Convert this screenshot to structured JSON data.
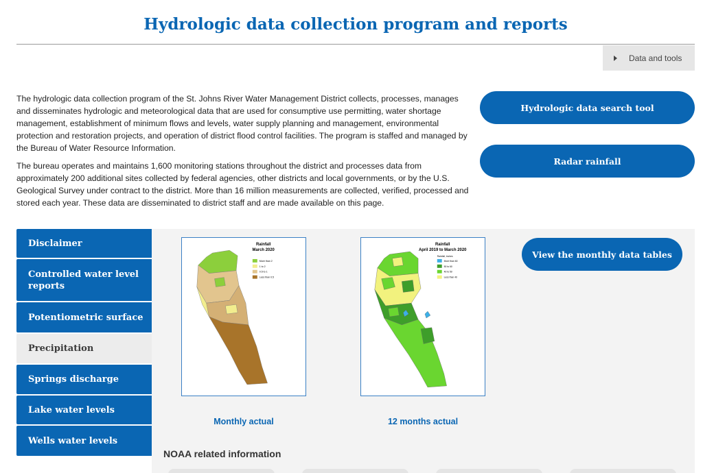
{
  "header": {
    "title": "Hydrologic data collection program and reports"
  },
  "data_tools": {
    "label": "Data and tools"
  },
  "intro": {
    "p1": "The hydrologic data collection program of the St. Johns River Water Management District collects, processes, manages and disseminates hydrologic and meteorological data that are used for consumptive use permitting, water shortage management, establishment of minimum flows and levels, water supply planning and management, environmental protection and restoration projects, and operation of district flood control facilities. The program is staffed and managed by the Bureau of Water Resource Information.",
    "p2": "The bureau operates and maintains 1,600 monitoring stations throughout the district and processes data from approximately 200 additional sites collected by federal agencies, other districts and local governments, or by the U.S. Geological Survey under contract to the district. More than 16 million measurements are collected, verified, processed and stored each year. These data are disseminated to district staff and are made available on this page."
  },
  "buttons": {
    "search_tool": "Hydrologic data search tool",
    "radar": "Radar rainfall",
    "monthly_tables": "View the monthly data tables"
  },
  "sidebar": {
    "items": [
      {
        "label": "Disclaimer"
      },
      {
        "label": "Controlled water level reports"
      },
      {
        "label": "Potentiometric surface"
      },
      {
        "label": "Precipitation",
        "active": true
      },
      {
        "label": "Springs discharge"
      },
      {
        "label": "Lake water levels"
      },
      {
        "label": "Wells water levels"
      }
    ]
  },
  "maps": {
    "monthly": {
      "title_line1": "Rainfall",
      "title_line2": "March 2020",
      "legend_title": "",
      "legend": [
        "More than 2",
        "1 to 2",
        "0.5 to 1",
        "Less than 0.5"
      ],
      "caption": "Monthly actual"
    },
    "annual": {
      "title_line1": "Rainfall",
      "title_line2": "April 2019 to March 2020",
      "legend_title": "Rainfall, inches",
      "legend": [
        "More than 60",
        "50 to 60",
        "40 to 50",
        "Less than 40"
      ],
      "caption": "12 months actual"
    }
  },
  "noaa": {
    "heading": "NOAA related information"
  },
  "colors": {
    "brand_blue": "#0a66b3",
    "map1": [
      "#8ccf3c",
      "#f2ed8e",
      "#e2c58e",
      "#a8742a"
    ],
    "map2": [
      "#3cb0e8",
      "#3e9e2a",
      "#6ad630",
      "#f2f27e"
    ]
  }
}
